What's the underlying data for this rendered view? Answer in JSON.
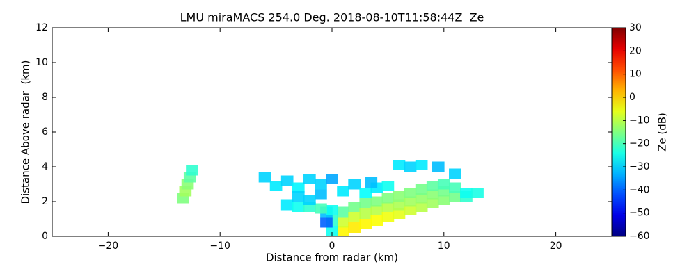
{
  "chart_data": {
    "type": "heatmap",
    "title": "LMU miraMACS 254.0 Deg. 2018-08-10T11:58:44Z  Ze",
    "x_label": "Distance from radar (km)",
    "y_label": "Distance Above radar  (km)",
    "colorbar_label": "Ze (dB)",
    "colormap": "jet",
    "xlim": [
      -25,
      25
    ],
    "ylim": [
      0,
      12
    ],
    "clim": [
      -60,
      30
    ],
    "xticks": [
      {
        "value": -20,
        "label": "−20"
      },
      {
        "value": -10,
        "label": "−10"
      },
      0,
      10,
      20
    ],
    "yticks": [
      0,
      2,
      4,
      6,
      8,
      10,
      12
    ],
    "cticks": [
      {
        "value": -60,
        "label": "−60"
      },
      {
        "value": -50,
        "label": "−50"
      },
      {
        "value": -40,
        "label": "−40"
      },
      {
        "value": -30,
        "label": "−30"
      },
      {
        "value": -20,
        "label": "−20"
      },
      {
        "value": -10,
        "label": "−10"
      },
      0,
      10,
      20,
      30
    ],
    "x": [
      -13.3,
      -13.1,
      -12.9,
      -12.7,
      -12.5,
      1,
      1,
      1,
      2,
      2,
      2,
      3,
      3,
      3,
      4,
      4,
      4,
      5,
      5,
      5,
      6,
      6,
      6,
      7,
      7,
      7,
      8,
      8,
      8,
      9,
      9,
      9,
      10,
      10,
      10,
      11,
      11,
      12,
      12,
      13,
      0,
      0,
      -0.5,
      -0.5,
      0,
      -4,
      -3,
      -2,
      -1,
      -6,
      -5,
      -4,
      -3,
      -2,
      -1,
      -3,
      -1,
      1,
      2,
      3,
      4,
      5,
      3.5,
      0,
      -2,
      6,
      7,
      8,
      9.5,
      11
    ],
    "y": [
      2.2,
      2.6,
      3.0,
      3.4,
      3.8,
      0.3,
      0.8,
      1.4,
      0.5,
      1.1,
      1.7,
      0.7,
      1.3,
      1.9,
      0.9,
      1.5,
      2.0,
      1.1,
      1.7,
      2.2,
      1.3,
      1.8,
      2.3,
      1.5,
      2.0,
      2.5,
      1.7,
      2.2,
      2.7,
      1.9,
      2.4,
      2.9,
      2.1,
      2.6,
      3.0,
      2.3,
      2.8,
      2.3,
      2.5,
      2.5,
      0.3,
      0.9,
      0.8,
      1.4,
      1.5,
      1.8,
      1.7,
      1.7,
      1.6,
      3.4,
      2.9,
      3.2,
      2.8,
      3.3,
      3.0,
      2.3,
      2.4,
      2.6,
      3.0,
      2.5,
      2.8,
      2.9,
      3.1,
      3.3,
      2.1,
      4.1,
      4.0,
      4.1,
      4.0,
      3.6
    ],
    "values": [
      -15,
      -12,
      -14,
      -18,
      -22,
      -3,
      -8,
      -18,
      -2,
      -8,
      -16,
      -3,
      -10,
      -16,
      -4,
      -10,
      -15,
      -5,
      -10,
      -15,
      -6,
      -11,
      -14,
      -8,
      -12,
      -15,
      -10,
      -13,
      -16,
      -12,
      -14,
      -18,
      -14,
      -16,
      -20,
      -16,
      -20,
      -22,
      -25,
      -24,
      -25,
      -22,
      -40,
      -32,
      -25,
      -28,
      -25,
      -22,
      -20,
      -30,
      -28,
      -30,
      -27,
      -30,
      -30,
      -30,
      -32,
      -28,
      -30,
      -26,
      -28,
      -25,
      -32,
      -34,
      -30,
      -28,
      -30,
      -28,
      -32,
      -30
    ]
  }
}
